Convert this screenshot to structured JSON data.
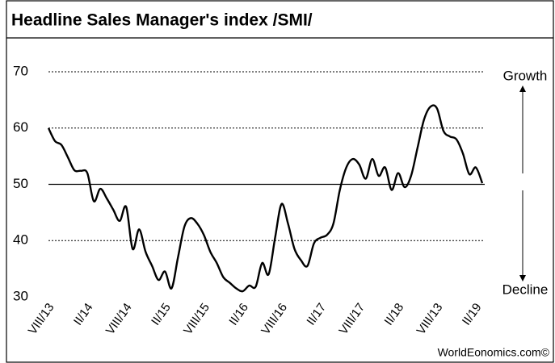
{
  "chart_data": {
    "type": "line",
    "title": "Headline Sales Manager's index /SMI/",
    "categories": [
      "VIII/13",
      null,
      null,
      null,
      null,
      null,
      "II/14",
      null,
      null,
      null,
      null,
      null,
      "VIII/14",
      null,
      null,
      null,
      null,
      null,
      "II/15",
      null,
      null,
      null,
      null,
      null,
      "VIII/15",
      null,
      null,
      null,
      null,
      null,
      "II/16",
      null,
      null,
      null,
      null,
      null,
      "VIII/16",
      null,
      null,
      null,
      null,
      null,
      "II/17",
      null,
      null,
      null,
      null,
      null,
      "VIII/17",
      null,
      null,
      null,
      null,
      null,
      "II/18",
      null,
      null,
      null,
      null,
      null,
      "VIII/13",
      null,
      null,
      null,
      null,
      null,
      "II/19",
      null
    ],
    "values": [
      60,
      57.7,
      57,
      54.8,
      52.5,
      52.4,
      52,
      47,
      49.2,
      47.5,
      45.5,
      43.5,
      46,
      38.5,
      42,
      38,
      35.5,
      33,
      34.5,
      31.5,
      37,
      42.5,
      44,
      43,
      41,
      38,
      36,
      33.5,
      32.5,
      31.5,
      31,
      32,
      31.8,
      36,
      34,
      40.5,
      46.5,
      43,
      38.5,
      36.5,
      35.5,
      39.5,
      40.5,
      41,
      43,
      49,
      53,
      54.5,
      53.5,
      51,
      54.5,
      51.5,
      53,
      49,
      52,
      49.5,
      51.5,
      56.5,
      61.5,
      63.8,
      63.5,
      59.5,
      58.5,
      58,
      55.5,
      51.8,
      53,
      50.2
    ],
    "color": "#000000",
    "ylim": [
      30,
      70
    ],
    "yticks": [
      30,
      40,
      50,
      60,
      70
    ],
    "grid": true,
    "reference_line": 50,
    "annotations": [
      "Growth",
      "Decline"
    ],
    "source": "WorldEonomics.com©"
  }
}
